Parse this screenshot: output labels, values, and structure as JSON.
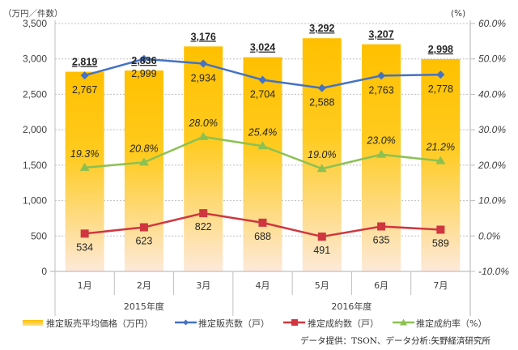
{
  "chart_data": {
    "type": "bar",
    "left_axis": {
      "unit_label": "（万円／件数）",
      "ylim": [
        0,
        3500
      ],
      "ticks": [
        "0",
        "500",
        "1,000",
        "1,500",
        "2,000",
        "2,500",
        "3,000",
        "3,500"
      ],
      "tick_values": [
        0,
        500,
        1000,
        1500,
        2000,
        2500,
        3000,
        3500
      ]
    },
    "right_axis": {
      "unit_label": "(%)",
      "ylim": [
        -10,
        60
      ],
      "ticks": [
        "-10.0%",
        "0.0%",
        "10.0%",
        "20.0%",
        "30.0%",
        "40.0%",
        "50.0%",
        "60.0%"
      ],
      "tick_values": [
        -10,
        0,
        10,
        20,
        30,
        40,
        50,
        60
      ]
    },
    "categories": [
      "1月",
      "2月",
      "3月",
      "4月",
      "5月",
      "6月",
      "7月"
    ],
    "groups": [
      {
        "label": "2015年度",
        "span": [
          0,
          2
        ]
      },
      {
        "label": "2016年度",
        "span": [
          3,
          6
        ]
      }
    ],
    "grid": true,
    "legend_position": "bottom",
    "series": [
      {
        "name": "推定販売平均価格（万円）",
        "type": "bar",
        "axis": "left",
        "color": "#FFC000",
        "color_bottom": "#FDE9D9",
        "values": [
          2819,
          2836,
          3176,
          3024,
          3292,
          3207,
          2998
        ],
        "labels": [
          "2,819",
          "2,836",
          "3,176",
          "3,024",
          "3,292",
          "3,207",
          "2,998"
        ]
      },
      {
        "name": "推定販売数（戸）",
        "type": "line",
        "marker": "diamond",
        "axis": "left",
        "color": "#4472C4",
        "values": [
          2767,
          2999,
          2934,
          2704,
          2588,
          2763,
          2778
        ],
        "labels": [
          "2,767",
          "2,999",
          "2,934",
          "2,704",
          "2,588",
          "2,763",
          "2,778"
        ]
      },
      {
        "name": "推定成約数（戸）",
        "type": "line",
        "marker": "square",
        "axis": "left",
        "color": "#D0363F",
        "values": [
          534,
          623,
          822,
          688,
          491,
          635,
          589
        ],
        "labels": [
          "534",
          "623",
          "822",
          "688",
          "491",
          "635",
          "589"
        ]
      },
      {
        "name": "推定成約率（%）",
        "type": "line",
        "marker": "triangle",
        "axis": "right",
        "color": "#8CC152",
        "values": [
          19.3,
          20.8,
          28.0,
          25.4,
          19.0,
          23.0,
          21.2
        ],
        "labels": [
          "19.3%",
          "20.8%",
          "28.0%",
          "25.4%",
          "19.0%",
          "23.0%",
          "21.2%"
        ]
      }
    ],
    "source": "データ提供：TSON、データ分析:矢野経済研究所"
  }
}
